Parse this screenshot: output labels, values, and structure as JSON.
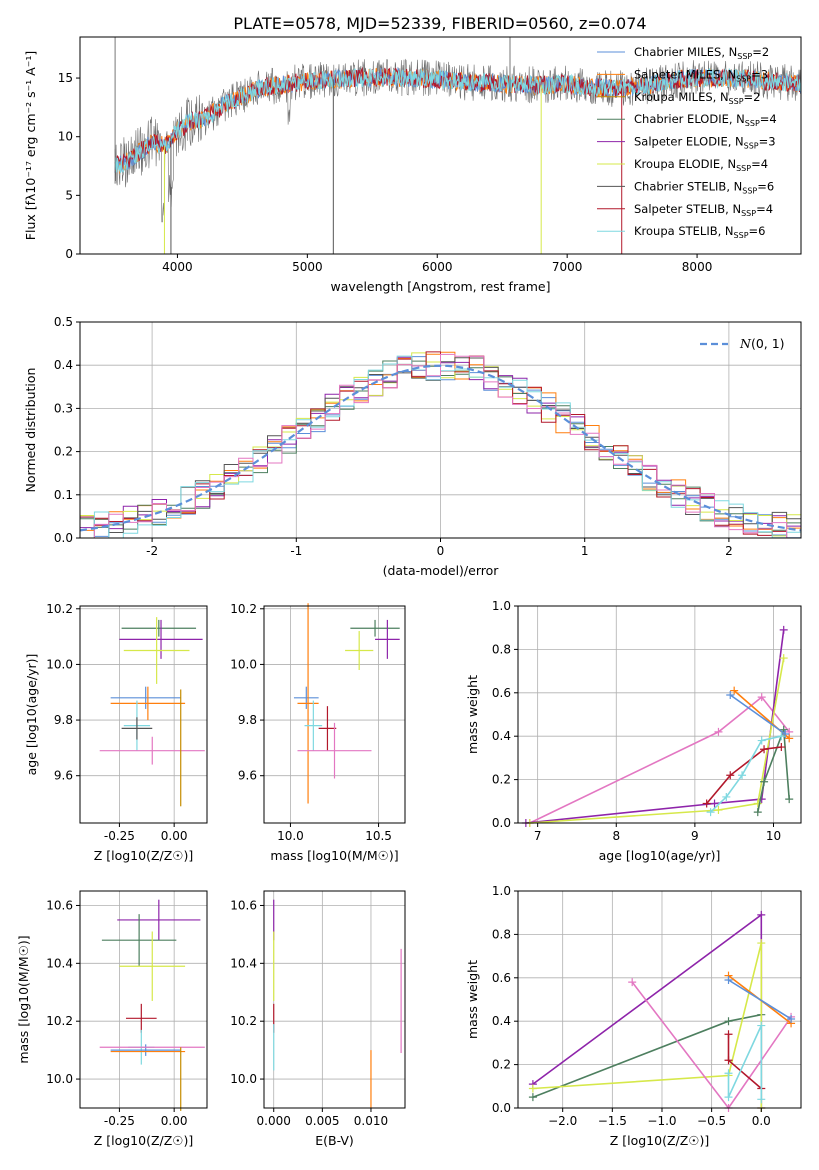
{
  "title": "PLATE=0578, MJD=52339, FIBERID=0560, z=0.074",
  "colors": {
    "chabrier_miles": "#5b8fd9",
    "salpeter_miles": "#ff7f0e",
    "kroupa_miles": "#c58b00",
    "chabrier_elodie": "#4d7f5f",
    "salpeter_elodie": "#8e24aa",
    "kroupa_elodie": "#d6e84a",
    "chabrier_stelib": "#555555",
    "salpeter_stelib": "#b2182b",
    "kroupa_stelib": "#7fd8e0",
    "hist_extra": "#e377c2",
    "normal_curve": "#5b8fd9"
  },
  "legend": [
    {
      "label": "Chabrier MILES, N",
      "sub": "SSP",
      "n": "=2",
      "color": "#5b8fd9"
    },
    {
      "label": "Salpeter MILES, N",
      "sub": "SSP",
      "n": "=3",
      "color": "#ff7f0e"
    },
    {
      "label": "Kroupa MILES, N",
      "sub": "SSP",
      "n": "=2",
      "color": "#c58b00"
    },
    {
      "label": "Chabrier ELODIE, N",
      "sub": "SSP",
      "n": "=4",
      "color": "#4d7f5f"
    },
    {
      "label": "Salpeter ELODIE, N",
      "sub": "SSP",
      "n": "=3",
      "color": "#8e24aa"
    },
    {
      "label": "Kroupa ELODIE, N",
      "sub": "SSP",
      "n": "=4",
      "color": "#d6e84a"
    },
    {
      "label": "Chabrier STELIB, N",
      "sub": "SSP",
      "n": "=6",
      "color": "#555555"
    },
    {
      "label": "Salpeter STELIB, N",
      "sub": "SSP",
      "n": "=4",
      "color": "#b2182b"
    },
    {
      "label": "Kroupa STELIB, N",
      "sub": "SSP",
      "n": "=6",
      "color": "#7fd8e0"
    }
  ],
  "chart_data": [
    {
      "type": "line",
      "title": "PLATE=0578, MJD=52339, FIBERID=0560, z=0.074",
      "xlabel": "wavelength [Angstrom, rest frame]",
      "ylabel": "Flux [fλ10⁻¹⁷ erg cm⁻² s⁻¹ A⁻¹]",
      "xlim": [
        3250,
        8800
      ],
      "ylim": [
        0,
        18.5
      ],
      "xticks": [
        4000,
        5000,
        6000,
        7000,
        8000
      ],
      "yticks": [
        0,
        5,
        10,
        15
      ],
      "spectrum_envelope": {
        "x": [
          3520,
          3600,
          3700,
          3800,
          3900,
          4000,
          4100,
          4200,
          4300,
          4400,
          4500,
          4600,
          4700,
          4800,
          4900,
          5000,
          5200,
          5400,
          5600,
          5800,
          6000,
          6200,
          6400,
          6600,
          6800,
          7000,
          7200,
          7400,
          7600,
          7800,
          8000,
          8200,
          8400,
          8600,
          8800
        ],
        "y": [
          7.5,
          7.8,
          8.6,
          9.5,
          9.2,
          10.5,
          11.3,
          11.5,
          12.2,
          13.0,
          13.5,
          14.0,
          14.3,
          14.4,
          14.6,
          14.7,
          14.9,
          15.0,
          15.1,
          15.0,
          14.9,
          14.7,
          14.6,
          14.5,
          14.4,
          14.5,
          14.2,
          14.1,
          14.3,
          14.8,
          15.0,
          15.0,
          14.9,
          14.7,
          14.5
        ]
      },
      "legend_position": "upper-right"
    },
    {
      "type": "histogram",
      "xlabel": "(data-model)/error",
      "ylabel": "Normed distribution",
      "xlim": [
        -2.5,
        2.5
      ],
      "ylim": [
        0,
        0.5
      ],
      "xticks": [
        -2,
        -1,
        0,
        1,
        2
      ],
      "yticks": [
        0.0,
        0.1,
        0.2,
        0.3,
        0.4,
        0.5
      ],
      "bin_width": 0.1,
      "bin_start": -2.5,
      "reference_series": {
        "name": "N(0,1)",
        "style": "dashed"
      },
      "legend_position": "upper-right"
    },
    {
      "type": "scatter",
      "xlabel": "Z [log10(Z/Z☉)]",
      "ylabel": "age [log10(age/yr)]",
      "xlim": [
        -0.43,
        0.15
      ],
      "ylim": [
        9.43,
        10.21
      ],
      "xticks": [
        -0.25,
        0.0
      ],
      "yticks": [
        9.6,
        9.8,
        10.0,
        10.2
      ],
      "points": [
        {
          "x": -0.07,
          "y": 10.13,
          "ex": 0.17,
          "ey": 0.03,
          "c": "#4d7f5f"
        },
        {
          "x": -0.06,
          "y": 10.09,
          "ex": 0.19,
          "ey": 0.07,
          "c": "#8e24aa"
        },
        {
          "x": -0.08,
          "y": 10.05,
          "ex": 0.15,
          "ey": 0.12,
          "c": "#d6e84a"
        },
        {
          "x": -0.13,
          "y": 9.88,
          "ex": 0.16,
          "ey": 0.04,
          "c": "#5b8fd9"
        },
        {
          "x": -0.12,
          "y": 9.86,
          "ex": 0.17,
          "ey": 0.06,
          "c": "#ff7f0e"
        },
        {
          "x": -0.17,
          "y": 9.78,
          "ex": 0.06,
          "ey": 0.09,
          "c": "#7fd8e0"
        },
        {
          "x": -0.17,
          "y": 9.77,
          "ex": 0.07,
          "ey": 0.04,
          "c": "#555555"
        },
        {
          "x": -0.1,
          "y": 9.69,
          "ex": 0.24,
          "ey": 0.05,
          "c": "#e377c2"
        },
        {
          "x": 0.03,
          "y": 9.7,
          "ex": 0.0,
          "ey": 0.21,
          "c": "#c58b00"
        }
      ]
    },
    {
      "type": "scatter",
      "xlabel": "mass [log10(M/M☉)]",
      "ylabel": "",
      "xlim": [
        9.85,
        10.65
      ],
      "ylim": [
        9.43,
        10.21
      ],
      "xticks": [
        10.0,
        10.5
      ],
      "yticks": [
        9.6,
        9.8,
        10.0,
        10.2
      ],
      "points": [
        {
          "x": 10.48,
          "y": 10.13,
          "ex": 0.14,
          "ey": 0.03,
          "c": "#4d7f5f"
        },
        {
          "x": 10.55,
          "y": 10.09,
          "ex": 0.07,
          "ey": 0.07,
          "c": "#8e24aa"
        },
        {
          "x": 10.39,
          "y": 10.05,
          "ex": 0.08,
          "ey": 0.07,
          "c": "#d6e84a"
        },
        {
          "x": 10.09,
          "y": 9.88,
          "ex": 0.07,
          "ey": 0.04,
          "c": "#5b8fd9"
        },
        {
          "x": 10.1,
          "y": 9.86,
          "ex": 0.06,
          "ey": 0.36,
          "c": "#ff7f0e"
        },
        {
          "x": 10.13,
          "y": 9.78,
          "ex": 0.05,
          "ey": 0.09,
          "c": "#7fd8e0"
        },
        {
          "x": 10.21,
          "y": 9.77,
          "ex": 0.05,
          "ey": 0.08,
          "c": "#b2182b"
        },
        {
          "x": 10.25,
          "y": 9.69,
          "ex": 0.21,
          "ey": 0.1,
          "c": "#e377c2"
        }
      ]
    },
    {
      "type": "line",
      "xlabel": "age [log10(age/yr)]",
      "ylabel": "mass weight",
      "xlim": [
        6.75,
        10.35
      ],
      "ylim": [
        0,
        1.0
      ],
      "xticks": [
        7,
        8,
        9,
        10
      ],
      "yticks": [
        0.0,
        0.2,
        0.4,
        0.6,
        0.8,
        1.0
      ],
      "series": [
        {
          "c": "#e377c2",
          "x": [
            6.9,
            9.3,
            9.85,
            10.2
          ],
          "y": [
            0.0,
            0.42,
            0.58,
            0.42
          ]
        },
        {
          "c": "#8e24aa",
          "x": [
            6.85,
            9.25,
            9.85,
            10.13
          ],
          "y": [
            0.0,
            0.09,
            0.11,
            0.89
          ]
        },
        {
          "c": "#d6e84a",
          "x": [
            6.9,
            9.3,
            9.8,
            10.13
          ],
          "y": [
            0.0,
            0.06,
            0.09,
            0.76
          ]
        },
        {
          "c": "#4d7f5f",
          "x": [
            9.8,
            9.88,
            10.13,
            10.2
          ],
          "y": [
            0.05,
            0.19,
            0.43,
            0.11
          ]
        },
        {
          "c": "#ff7f0e",
          "x": [
            9.5,
            10.2
          ],
          "y": [
            0.61,
            0.39
          ]
        },
        {
          "c": "#5b8fd9",
          "x": [
            9.45,
            10.15
          ],
          "y": [
            0.59,
            0.41
          ]
        },
        {
          "c": "#b2182b",
          "x": [
            9.15,
            9.45,
            9.88,
            10.1
          ],
          "y": [
            0.09,
            0.22,
            0.34,
            0.35
          ]
        },
        {
          "c": "#7fd8e0",
          "x": [
            9.2,
            9.4,
            9.6,
            9.85,
            10.1
          ],
          "y": [
            0.05,
            0.12,
            0.22,
            0.38,
            0.4
          ]
        }
      ]
    },
    {
      "type": "scatter",
      "xlabel": "Z [log10(Z/Z☉)]",
      "ylabel": "mass [log10(M/M☉)]",
      "xlim": [
        -0.43,
        0.15
      ],
      "ylim": [
        9.9,
        10.65
      ],
      "xticks": [
        -0.25,
        0.0
      ],
      "yticks": [
        10.0,
        10.2,
        10.4,
        10.6
      ],
      "points": [
        {
          "x": -0.07,
          "y": 10.55,
          "ex": 0.19,
          "ey": 0.07,
          "c": "#8e24aa"
        },
        {
          "x": -0.16,
          "y": 10.48,
          "ex": 0.17,
          "ey": 0.09,
          "c": "#4d7f5f"
        },
        {
          "x": -0.1,
          "y": 10.39,
          "ex": 0.15,
          "ey": 0.12,
          "c": "#d6e84a"
        },
        {
          "x": -0.15,
          "y": 10.21,
          "ex": 0.07,
          "ey": 0.05,
          "c": "#b2182b"
        },
        {
          "x": -0.15,
          "y": 10.11,
          "ex": 0.06,
          "ey": 0.06,
          "c": "#7fd8e0"
        },
        {
          "x": -0.13,
          "y": 10.1,
          "ex": 0.16,
          "ey": 0.02,
          "c": "#5b8fd9"
        },
        {
          "x": -0.1,
          "y": 10.11,
          "ex": 0.24,
          "ey": 0.0,
          "c": "#e377c2"
        },
        {
          "x": -0.12,
          "y": 10.095,
          "ex": 0.17,
          "ey": 0.0,
          "c": "#ff7f0e"
        },
        {
          "x": 0.03,
          "y": 10.0,
          "ex": 0.0,
          "ey": 0.11,
          "c": "#c58b00"
        }
      ]
    },
    {
      "type": "scatter",
      "xlabel": "E(B-V)",
      "ylabel": "",
      "xlim": [
        -0.001,
        0.0135
      ],
      "ylim": [
        9.9,
        10.65
      ],
      "xticks": [
        0.0,
        0.005,
        0.01
      ],
      "yticks": [
        10.0,
        10.2,
        10.4,
        10.6
      ],
      "points": [
        {
          "x": 0.0,
          "y": 10.55,
          "ex": 0,
          "ey": 0.07,
          "c": "#8e24aa"
        },
        {
          "x": 0.0,
          "y": 10.39,
          "ex": 0,
          "ey": 0.12,
          "c": "#d6e84a"
        },
        {
          "x": 0.0,
          "y": 10.21,
          "ex": 0,
          "ey": 0.05,
          "c": "#b2182b"
        },
        {
          "x": 0.0,
          "y": 10.11,
          "ex": 0,
          "ey": 0.08,
          "c": "#7fd8e0"
        },
        {
          "x": 0.01,
          "y": 10.0,
          "ex": 0,
          "ey": 0.1,
          "c": "#ff7f0e"
        },
        {
          "x": 0.0131,
          "y": 10.27,
          "ex": 0,
          "ey": 0.18,
          "c": "#e377c2"
        }
      ]
    },
    {
      "type": "line",
      "xlabel": "Z [log10(Z/Z☉)]",
      "ylabel": "mass weight",
      "xlim": [
        -2.45,
        0.4
      ],
      "ylim": [
        0,
        1.0
      ],
      "xticks": [
        -2.0,
        -1.5,
        -1.0,
        -0.5,
        0.0
      ],
      "yticks": [
        0.0,
        0.2,
        0.4,
        0.6,
        0.8,
        1.0
      ],
      "series": [
        {
          "c": "#8e24aa",
          "x": [
            -2.3,
            0.0,
            0.0
          ],
          "y": [
            0.11,
            0.89,
            0.0
          ]
        },
        {
          "c": "#4d7f5f",
          "x": [
            -2.3,
            -0.33,
            0.0
          ],
          "y": [
            0.05,
            0.4,
            0.43
          ]
        },
        {
          "c": "#d6e84a",
          "x": [
            -2.3,
            -0.33,
            0.0,
            0.0
          ],
          "y": [
            0.09,
            0.15,
            0.76,
            0.0
          ]
        },
        {
          "c": "#e377c2",
          "x": [
            -1.3,
            -0.33,
            0.3
          ],
          "y": [
            0.58,
            0.0,
            0.42
          ]
        },
        {
          "c": "#ff7f0e",
          "x": [
            -0.33,
            0.3
          ],
          "y": [
            0.61,
            0.39
          ]
        },
        {
          "c": "#5b8fd9",
          "x": [
            -0.33,
            0.3
          ],
          "y": [
            0.59,
            0.41
          ]
        },
        {
          "c": "#b2182b",
          "x": [
            -0.33,
            -0.33,
            0.0
          ],
          "y": [
            0.34,
            0.22,
            0.09
          ]
        },
        {
          "c": "#7fd8e0",
          "x": [
            -0.33,
            -0.33,
            0.0,
            0.0
          ],
          "y": [
            0.16,
            0.05,
            0.38,
            0.04
          ]
        }
      ]
    }
  ]
}
